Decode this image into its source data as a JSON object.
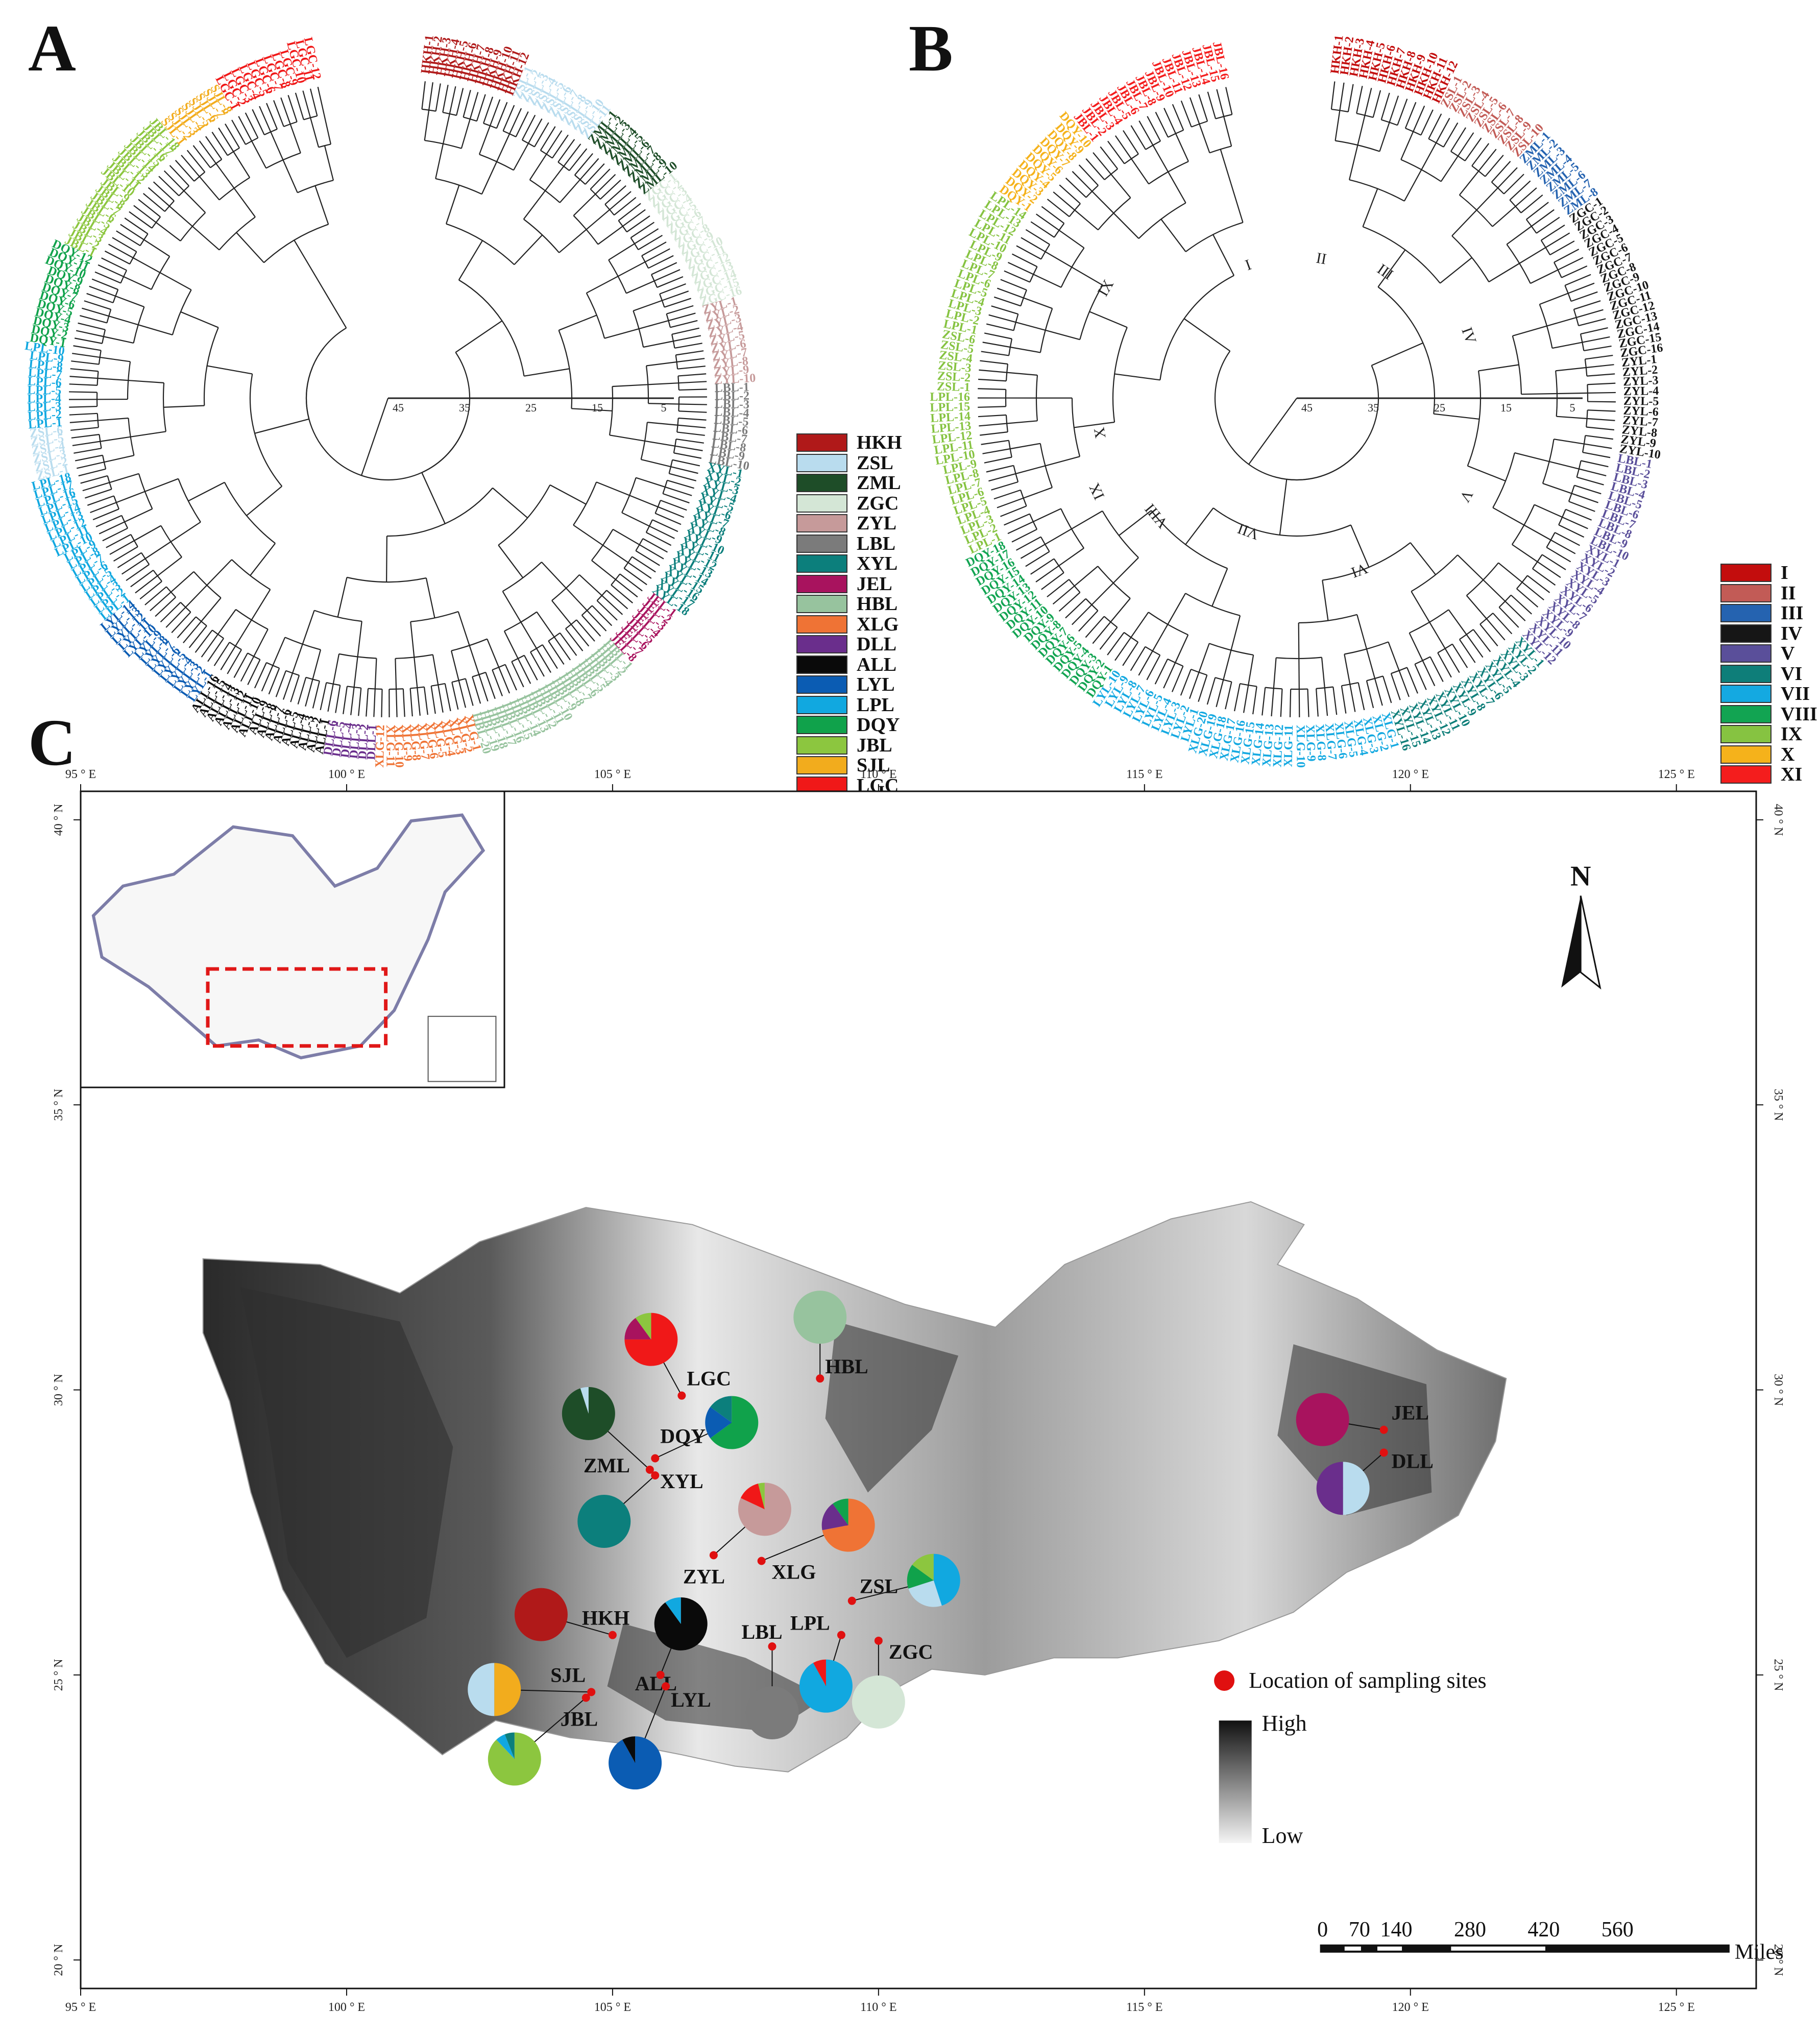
{
  "panels": {
    "a": "A",
    "b": "B",
    "c": "C"
  },
  "tree_scale": [
    "45",
    "35",
    "25",
    "15",
    "5"
  ],
  "legend_a": [
    {
      "label": "HKH",
      "color": "#b01919"
    },
    {
      "label": "ZSL",
      "color": "#b9dcee"
    },
    {
      "label": "ZML",
      "color": "#1e4d28"
    },
    {
      "label": "ZGC",
      "color": "#d4e6d6"
    },
    {
      "label": "ZYL",
      "color": "#c69a9a"
    },
    {
      "label": "LBL",
      "color": "#7b7b7b"
    },
    {
      "label": "XYL",
      "color": "#0c7f7c"
    },
    {
      "label": "JEL",
      "color": "#a8135e"
    },
    {
      "label": "HBL",
      "color": "#97c39e"
    },
    {
      "label": "XLG",
      "color": "#ef7335"
    },
    {
      "label": "DLL",
      "color": "#6a2e8c"
    },
    {
      "label": "ALL",
      "color": "#0a0a0a"
    },
    {
      "label": "LYL",
      "color": "#0b5cb3"
    },
    {
      "label": "LPL",
      "color": "#11a8e0"
    },
    {
      "label": "DQY",
      "color": "#10a24b"
    },
    {
      "label": "JBL",
      "color": "#8cc63f"
    },
    {
      "label": "SJL",
      "color": "#f2ac1d"
    },
    {
      "label": "LGC",
      "color": "#f01818"
    }
  ],
  "legend_b": [
    {
      "label": "I",
      "color": "#c30d0d"
    },
    {
      "label": "II",
      "color": "#c25b56"
    },
    {
      "label": "III",
      "color": "#2563b0"
    },
    {
      "label": "IV",
      "color": "#161616"
    },
    {
      "label": "V",
      "color": "#5a4f9a"
    },
    {
      "label": "VI",
      "color": "#0e7e79"
    },
    {
      "label": "VII",
      "color": "#14a9e1"
    },
    {
      "label": "VIII",
      "color": "#12a452"
    },
    {
      "label": "IX",
      "color": "#86c341"
    },
    {
      "label": "X",
      "color": "#f5b21b"
    },
    {
      "label": "XI",
      "color": "#f41d1d"
    }
  ],
  "tree_a_groups": [
    {
      "label": "HKH",
      "count": 12
    },
    {
      "label": "ZSL",
      "count": 11
    },
    {
      "label": "ZML",
      "count": 10
    },
    {
      "label": "ZGC",
      "count": 16
    },
    {
      "label": "ZYL",
      "count": 10
    },
    {
      "label": "LBL",
      "count": 10
    },
    {
      "label": "XYL",
      "count": 18
    },
    {
      "label": "JEL",
      "count": 8
    },
    {
      "label": "HBL",
      "count": 20
    },
    {
      "label": "XLG",
      "count": 12
    },
    {
      "label": "DLL",
      "count": 6
    },
    {
      "label": "ALL",
      "count": 16
    },
    {
      "label": "LYL",
      "count": 14
    },
    {
      "label": "LPL",
      "count": 18
    },
    {
      "label": "ZSL",
      "count": 6
    },
    {
      "label": "LPL",
      "count": 10
    },
    {
      "label": "DQY",
      "count": 12
    },
    {
      "label": "JBL",
      "count": 18
    },
    {
      "label": "SJL",
      "count": 8
    },
    {
      "label": "LGC",
      "count": 12
    }
  ],
  "tree_b_groups": [
    {
      "label": "HKH",
      "cls": 0,
      "count": 12
    },
    {
      "label": "ZSL",
      "cls": 1,
      "count": 10
    },
    {
      "label": "ZML",
      "cls": 2,
      "count": 8
    },
    {
      "label": "ZGC",
      "cls": 3,
      "count": 16
    },
    {
      "label": "ZYL",
      "cls": 3,
      "count": 10
    },
    {
      "label": "LBL",
      "cls": 4,
      "count": 10
    },
    {
      "label": "XYL",
      "cls": 4,
      "count": 12
    },
    {
      "label": "XYL",
      "cls": 5,
      "count": 16
    },
    {
      "label": "XLG",
      "cls": 6,
      "count": 20
    },
    {
      "label": "LYL",
      "cls": 6,
      "count": 10
    },
    {
      "label": "DQY",
      "cls": 7,
      "count": 18
    },
    {
      "label": "LPL",
      "cls": 8,
      "count": 16
    },
    {
      "label": "ZSL",
      "cls": 8,
      "count": 6
    },
    {
      "label": "LPL",
      "cls": 8,
      "count": 14
    },
    {
      "label": "DQY",
      "cls": 9,
      "count": 10
    },
    {
      "label": "JBL",
      "cls": 10,
      "count": 16
    }
  ],
  "tree_b_clades": [
    "I",
    "II",
    "III",
    "IV",
    "V",
    "VI",
    "VII",
    "VIII",
    "IX",
    "X",
    "IX"
  ],
  "map": {
    "lon_ticks": [
      "95 ° E",
      "100 ° E",
      "105 ° E",
      "110 ° E",
      "115 ° E",
      "120 ° E",
      "125 ° E"
    ],
    "lat_ticks": [
      "40 ° N",
      "35 ° N",
      "30 ° N",
      "25 ° N",
      "20 ° N"
    ],
    "north_label": "N",
    "sampling_legend": "Location of sampling sites",
    "elevation_high": "High",
    "elevation_low": "Low",
    "scale_labels": [
      "0",
      "70",
      "140",
      "280",
      "420",
      "560"
    ],
    "scale_unit": "Miles",
    "sites": [
      {
        "name": "LGC",
        "lon": 106.3,
        "lat": 29.9,
        "pie": [
          {
            "v": 0.75,
            "c": "#f01818"
          },
          {
            "v": 0.15,
            "c": "#a8135e"
          },
          {
            "v": 0.1,
            "c": "#8cc63f"
          }
        ]
      },
      {
        "name": "HBL",
        "lon": 108.9,
        "lat": 30.2,
        "pie": [
          {
            "v": 1,
            "c": "#97c39e"
          }
        ]
      },
      {
        "name": "DQY",
        "lon": 105.8,
        "lat": 28.8,
        "pie": [
          {
            "v": 0.65,
            "c": "#10a24b"
          },
          {
            "v": 0.2,
            "c": "#0b5cb3"
          },
          {
            "v": 0.15,
            "c": "#0c7f7c"
          }
        ]
      },
      {
        "name": "ZML",
        "lon": 105.7,
        "lat": 28.6,
        "pie": [
          {
            "v": 0.95,
            "c": "#1e4d28"
          },
          {
            "v": 0.05,
            "c": "#b9dcee"
          }
        ]
      },
      {
        "name": "XYL",
        "lon": 105.8,
        "lat": 28.5,
        "pie": [
          {
            "v": 1,
            "c": "#0c7f7c"
          }
        ]
      },
      {
        "name": "ZYL",
        "lon": 106.9,
        "lat": 27.1,
        "pie": [
          {
            "v": 0.82,
            "c": "#c69a9a"
          },
          {
            "v": 0.14,
            "c": "#f01818"
          },
          {
            "v": 0.04,
            "c": "#8cc63f"
          }
        ]
      },
      {
        "name": "XLG",
        "lon": 107.8,
        "lat": 27.0,
        "pie": [
          {
            "v": 0.72,
            "c": "#ef7335"
          },
          {
            "v": 0.18,
            "c": "#6a2e8c"
          },
          {
            "v": 0.1,
            "c": "#10a24b"
          }
        ]
      },
      {
        "name": "ZSL",
        "lon": 109.5,
        "lat": 26.3,
        "pie": [
          {
            "v": 0.45,
            "c": "#11a8e0"
          },
          {
            "v": 0.25,
            "c": "#b9dcee"
          },
          {
            "v": 0.15,
            "c": "#10a24b"
          },
          {
            "v": 0.15,
            "c": "#8cc63f"
          }
        ]
      },
      {
        "name": "LPL",
        "lon": 109.3,
        "lat": 25.7,
        "pie": [
          {
            "v": 0.92,
            "c": "#11a8e0"
          },
          {
            "v": 0.08,
            "c": "#f01818"
          }
        ]
      },
      {
        "name": "ZGC",
        "lon": 110.0,
        "lat": 25.6,
        "pie": [
          {
            "v": 1,
            "c": "#d4e6d6"
          }
        ]
      },
      {
        "name": "LBL",
        "lon": 108.0,
        "lat": 25.5,
        "pie": [
          {
            "v": 1,
            "c": "#7b7b7b"
          }
        ]
      },
      {
        "name": "HKH",
        "lon": 105.0,
        "lat": 25.7,
        "pie": [
          {
            "v": 1,
            "c": "#b01919"
          }
        ]
      },
      {
        "name": "ALL",
        "lon": 105.9,
        "lat": 25.0,
        "pie": [
          {
            "v": 0.9,
            "c": "#0a0a0a"
          },
          {
            "v": 0.1,
            "c": "#11a8e0"
          }
        ]
      },
      {
        "name": "LYL",
        "lon": 106.0,
        "lat": 24.8,
        "pie": [
          {
            "v": 0.92,
            "c": "#0b5cb3"
          },
          {
            "v": 0.08,
            "c": "#0a0a0a"
          }
        ]
      },
      {
        "name": "SJL",
        "lon": 104.6,
        "lat": 24.7,
        "pie": [
          {
            "v": 0.5,
            "c": "#f2ac1d"
          },
          {
            "v": 0.5,
            "c": "#b9dcee"
          }
        ]
      },
      {
        "name": "JBL",
        "lon": 104.5,
        "lat": 24.6,
        "pie": [
          {
            "v": 0.88,
            "c": "#8cc63f"
          },
          {
            "v": 0.06,
            "c": "#11a8e0"
          },
          {
            "v": 0.06,
            "c": "#0c7f7c"
          }
        ]
      },
      {
        "name": "JEL",
        "lon": 119.5,
        "lat": 29.3,
        "pie": [
          {
            "v": 1,
            "c": "#a8135e"
          }
        ]
      },
      {
        "name": "DLL",
        "lon": 119.5,
        "lat": 28.9,
        "pie": [
          {
            "v": 0.5,
            "c": "#b9dcee"
          },
          {
            "v": 0.5,
            "c": "#6a2e8c"
          }
        ]
      }
    ]
  }
}
